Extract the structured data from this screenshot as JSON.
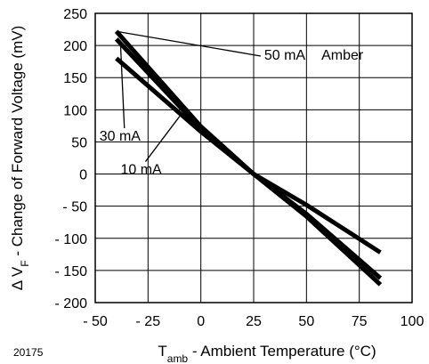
{
  "chart_data": {
    "type": "line",
    "title": "",
    "xlabel": {
      "base": "T",
      "sub": "amb",
      "rest": " - Ambient Temperature (°C)"
    },
    "ylabel": {
      "prefix": "Δ V",
      "sub": "F",
      "rest": " - Change of Forward Voltage (mV)"
    },
    "xlim": [
      -50,
      100
    ],
    "ylim": [
      -200,
      250
    ],
    "xticks": [
      -50,
      -25,
      0,
      25,
      50,
      75,
      100
    ],
    "xtick_labels": [
      "- 50",
      "- 25",
      "0",
      "25",
      "50",
      "75",
      "100"
    ],
    "yticks": [
      -200,
      -150,
      -100,
      -50,
      0,
      50,
      100,
      150,
      200,
      250
    ],
    "ytick_labels": [
      "- 200",
      "- 150",
      "- 100",
      "- 50",
      "0",
      "50",
      "100",
      "150",
      "200",
      "250"
    ],
    "grid": true,
    "series": [
      {
        "name": "10 mA",
        "x": [
          -40,
          0,
          25,
          50,
          85
        ],
        "y": [
          180,
          66,
          0,
          -48,
          -122
        ]
      },
      {
        "name": "30 mA",
        "x": [
          -40,
          0,
          25,
          50,
          85
        ],
        "y": [
          210,
          70,
          0,
          -62,
          -162
        ]
      },
      {
        "name": "50 mA",
        "x": [
          -40,
          0,
          25,
          50,
          85
        ],
        "y": [
          222,
          74,
          0,
          -66,
          -172
        ]
      }
    ],
    "annotations": [
      {
        "text": "50 mA",
        "target_series": "50 mA",
        "point": [
          -40,
          222
        ],
        "label_at": [
          30,
          178
        ]
      },
      {
        "text": "30 mA",
        "target_series": "30 mA",
        "point": [
          -38,
          200
        ],
        "label_at": [
          -48,
          52
        ]
      },
      {
        "text": "10 mA",
        "target_series": "10 mA",
        "point": [
          -10,
          90
        ],
        "label_at": [
          -38,
          0
        ]
      }
    ],
    "legend_text": "Amber",
    "figure_id": "20175"
  }
}
